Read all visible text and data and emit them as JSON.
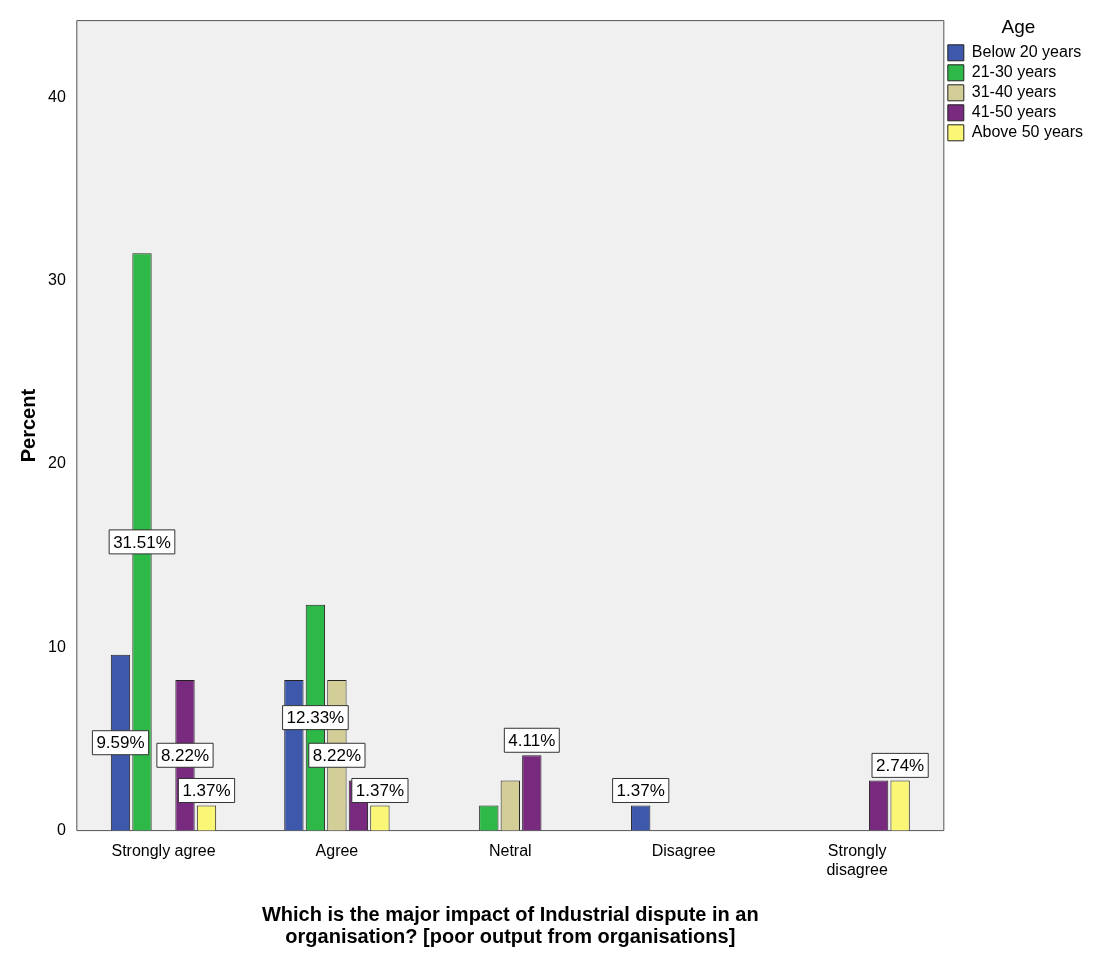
{
  "chart_data": {
    "type": "bar",
    "xlabel": "Which is the major impact of Industrial dispute in an organisation? [poor output from organisations]",
    "ylabel": "Percent",
    "legend_title": "Age",
    "categories": [
      "Strongly agree",
      "Agree",
      "Netral",
      "Disagree",
      "Strongly disagree"
    ],
    "series": [
      {
        "name": "Below 20 years",
        "color": "#3e58ac",
        "values": [
          9.59,
          8.22,
          0,
          1.37,
          0
        ],
        "value_labels": [
          "9.59%",
          null,
          null,
          "1.37%",
          null
        ]
      },
      {
        "name": "21-30 years",
        "color": "#2eb848",
        "values": [
          31.51,
          12.33,
          1.37,
          0,
          0
        ],
        "value_labels": [
          "31.51%",
          "12.33%",
          null,
          null,
          null
        ]
      },
      {
        "name": "31-40 years",
        "color": "#d3ce97",
        "values": [
          0,
          8.22,
          2.74,
          0,
          0
        ],
        "value_labels": [
          null,
          "8.22%",
          null,
          null,
          null
        ]
      },
      {
        "name": "41-50 years",
        "color": "#782a7f",
        "values": [
          8.22,
          2.74,
          4.11,
          0,
          2.74
        ],
        "value_labels": [
          "8.22%",
          null,
          "4.11%",
          null,
          null
        ]
      },
      {
        "name": "Above 50 years",
        "color": "#fbf776",
        "values": [
          1.37,
          1.37,
          0,
          0,
          2.74
        ],
        "value_labels": [
          "1.37%",
          "1.37%",
          null,
          null,
          "2.74%"
        ]
      }
    ],
    "ylim": [
      0,
      44.2
    ],
    "yticks": [
      0,
      10,
      20,
      30,
      40
    ],
    "grid": false,
    "legend": "right"
  }
}
